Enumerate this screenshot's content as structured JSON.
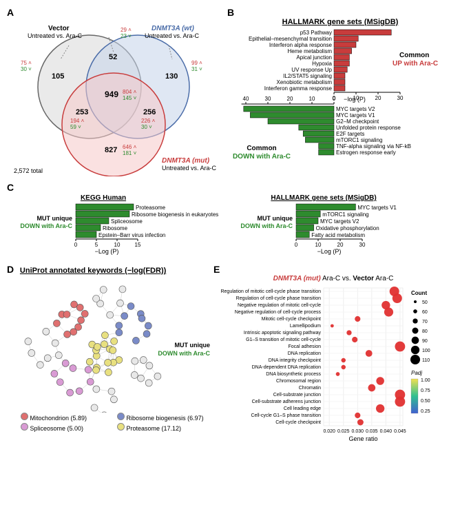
{
  "panelA": {
    "label": "A",
    "vector_title1": "Vector",
    "vector_title2": "Untreated vs. Ara-C",
    "wt_title1": "DNMT3A (wt)",
    "wt_title2": "Untreated vs. Ara-C",
    "mut_title1": "DNMT3A (mut)",
    "mut_title2": "Untreated vs. Ara-C",
    "region_vec_only": "105",
    "region_vec_only_up": "75 ",
    "region_vec_only_dn": "30 ",
    "region_wt_only": "130",
    "region_wt_only_up": "99 ",
    "region_wt_only_dn": "31 ",
    "region_vec_wt": "52",
    "region_vec_wt_up": "29 ",
    "region_vec_wt_dn": "23 ",
    "region_vec_mut": "253",
    "region_vec_mut_up": "194 ",
    "region_vec_mut_dn": "59 ",
    "region_wt_mut": "256",
    "region_wt_mut_up": "226 ",
    "region_wt_mut_dn": "30 ",
    "region_center": "949",
    "region_center_up": "804 ",
    "region_center_dn": "145 ",
    "region_mut_only": "827",
    "region_mut_only_up": "646 ",
    "region_mut_only_dn": "181 ",
    "total": "2,572 total",
    "venn_colors": {
      "vec": "#d9d9d9",
      "wt": "#c5d3ea",
      "mut": "#f5c9c9",
      "stroke_vec": "#666",
      "stroke_wt": "#4a6ca8",
      "stroke_mut": "#c83c3c"
    }
  },
  "panelB": {
    "label": "B",
    "title": "HALLMARK gene sets (MSigDB)",
    "common_up_label1": "Common",
    "common_up_label2": "UP with Ara-C",
    "common_dn_label1": "Common",
    "common_dn_label2": "DOWN with Ara-C",
    "axis": "−log (P)",
    "up_color": "#c83c3c",
    "dn_color": "#2e8b2e",
    "up": [
      {
        "name": "p53 Pathway",
        "v": 26
      },
      {
        "name": "Epithelial–mesenchymal transition",
        "v": 11
      },
      {
        "name": "Interferon alpha response",
        "v": 10
      },
      {
        "name": "Heme metabolism",
        "v": 8
      },
      {
        "name": "Apical junction",
        "v": 7
      },
      {
        "name": "Hypoxia",
        "v": 7
      },
      {
        "name": "UV response Up",
        "v": 6
      },
      {
        "name": "IL2/STAT5 signaling",
        "v": 5
      },
      {
        "name": "Xenobiotic metabolism",
        "v": 5
      },
      {
        "name": "Interferon gamma response",
        "v": 5
      }
    ],
    "dn": [
      {
        "name": "MYC targets V2",
        "v": 41
      },
      {
        "name": "MYC targets V1",
        "v": 38
      },
      {
        "name": "G2–M checkpoint",
        "v": 30
      },
      {
        "name": "Unfolded protein response",
        "v": 16
      },
      {
        "name": "E2F targets",
        "v": 14
      },
      {
        "name": "mTORC1 signaling",
        "v": 13
      },
      {
        "name": "TNF-alpha signaling via NF-kB",
        "v": 7
      },
      {
        "name": "Estrogen response early",
        "v": 7
      }
    ],
    "ticks_up": [
      0,
      10,
      20,
      30
    ],
    "ticks_dn": [
      0,
      10,
      20,
      30,
      40
    ]
  },
  "panelC": {
    "label": "C",
    "left_title": "KEGG Human",
    "right_title": "HALLMARK gene sets (MSigDB)",
    "side_label1": "MUT unique",
    "side_label2": "DOWN with Ara-C",
    "axis": "−Log (P)",
    "color": "#2e8b2e",
    "left": [
      {
        "name": "Proteasome",
        "v": 14
      },
      {
        "name": "Ribosome biogenesis in eukaryotes",
        "v": 13
      },
      {
        "name": "Spliceosome",
        "v": 8
      },
      {
        "name": "Ribosome",
        "v": 6
      },
      {
        "name": "Epstein–Barr virus infection",
        "v": 5
      }
    ],
    "left_ticks": [
      0,
      5,
      10,
      15
    ],
    "right": [
      {
        "name": "MYC targets V1",
        "v": 27
      },
      {
        "name": "mTORC1 signaling",
        "v": 11
      },
      {
        "name": "MYC targets V2",
        "v": 10
      },
      {
        "name": "Oxidative phosphorylation",
        "v": 8
      },
      {
        "name": "Fatty acid metabolism",
        "v": 6
      }
    ],
    "right_ticks": [
      0,
      10,
      20,
      30
    ]
  },
  "panelD": {
    "label": "D",
    "title": "UniProt annotated keywords (−log(FDR))",
    "side_label1": "MUT unique",
    "side_label2": "DOWN with Ara-C",
    "legend": [
      {
        "name": "Mitochondrion (5.89)",
        "color": "#e07070"
      },
      {
        "name": "Ribosome biogenesis (6.97)",
        "color": "#7a8bc8"
      },
      {
        "name": "Spliceosome (5.00)",
        "color": "#d99bd4"
      },
      {
        "name": "Proteasome (17.12)",
        "color": "#e8e080"
      }
    ],
    "node_fill_default": "#e8e8e8",
    "edge_color": "#bbb"
  },
  "panelE": {
    "label": "E",
    "title_left": "DNMT3A (mut)",
    "title_mid": " Ara-C vs. ",
    "title_right": "Vector",
    "title_end": " Ara-C",
    "xaxis": "Gene ratio",
    "count_label": "Count",
    "padj_label": "Padj",
    "dot_color": "#e03030",
    "xticks": [
      0.02,
      0.025,
      0.03,
      0.035,
      0.04,
      0.045
    ],
    "counts": [
      50,
      60,
      70,
      80,
      90,
      100,
      110
    ],
    "padj_colors": {
      "low": "#4060d0",
      "mid": "#30c090",
      "high": "#f0e050"
    },
    "terms": [
      {
        "name": "Regulation of mitotic cell-cycle phase transition",
        "x": 0.043,
        "c": 110,
        "p": 0.02
      },
      {
        "name": "Regulation of cell-cycle phase transition",
        "x": 0.044,
        "c": 110,
        "p": 0.02
      },
      {
        "name": "Negative regulation of mitotic cell-cycle",
        "x": 0.04,
        "c": 100,
        "p": 0.02
      },
      {
        "name": "Negative regulation of cell-cycle process",
        "x": 0.041,
        "c": 105,
        "p": 0.02
      },
      {
        "name": "Mitotic cell-cycle checkpoint",
        "x": 0.03,
        "c": 75,
        "p": 0.02
      },
      {
        "name": "Lamellipodium",
        "x": 0.021,
        "c": 55,
        "p": 0.9
      },
      {
        "name": "Intrinsic apoptotic signaling pathway",
        "x": 0.027,
        "c": 70,
        "p": 0.5
      },
      {
        "name": "G1–S transition of mitotic cell-cycle",
        "x": 0.029,
        "c": 75,
        "p": 0.02
      },
      {
        "name": "Focal adhesion",
        "x": 0.045,
        "c": 115,
        "p": 0.02
      },
      {
        "name": "DNA replication",
        "x": 0.034,
        "c": 85,
        "p": 0.02
      },
      {
        "name": "DNA integrity checkpoint",
        "x": 0.025,
        "c": 65,
        "p": 0.05
      },
      {
        "name": "DNA-dependent DNA replication",
        "x": 0.025,
        "c": 65,
        "p": 0.02
      },
      {
        "name": "DNA biosynthetic process",
        "x": 0.023,
        "c": 60,
        "p": 0.15
      },
      {
        "name": "Chromosomal region",
        "x": 0.038,
        "c": 95,
        "p": 0.02
      },
      {
        "name": "Chromatin",
        "x": 0.035,
        "c": 90,
        "p": 0.6
      },
      {
        "name": "Cell-substrate junction",
        "x": 0.045,
        "c": 115,
        "p": 0.02
      },
      {
        "name": "Cell-substrate adherens junction",
        "x": 0.045,
        "c": 115,
        "p": 0.02
      },
      {
        "name": "Cell leading edge",
        "x": 0.038,
        "c": 100,
        "p": 0.8
      },
      {
        "name": "Cell-cycle G1–S phase transition",
        "x": 0.03,
        "c": 75,
        "p": 0.02
      },
      {
        "name": "Cell-cycle checkpoint",
        "x": 0.031,
        "c": 80,
        "p": 0.02
      }
    ]
  }
}
